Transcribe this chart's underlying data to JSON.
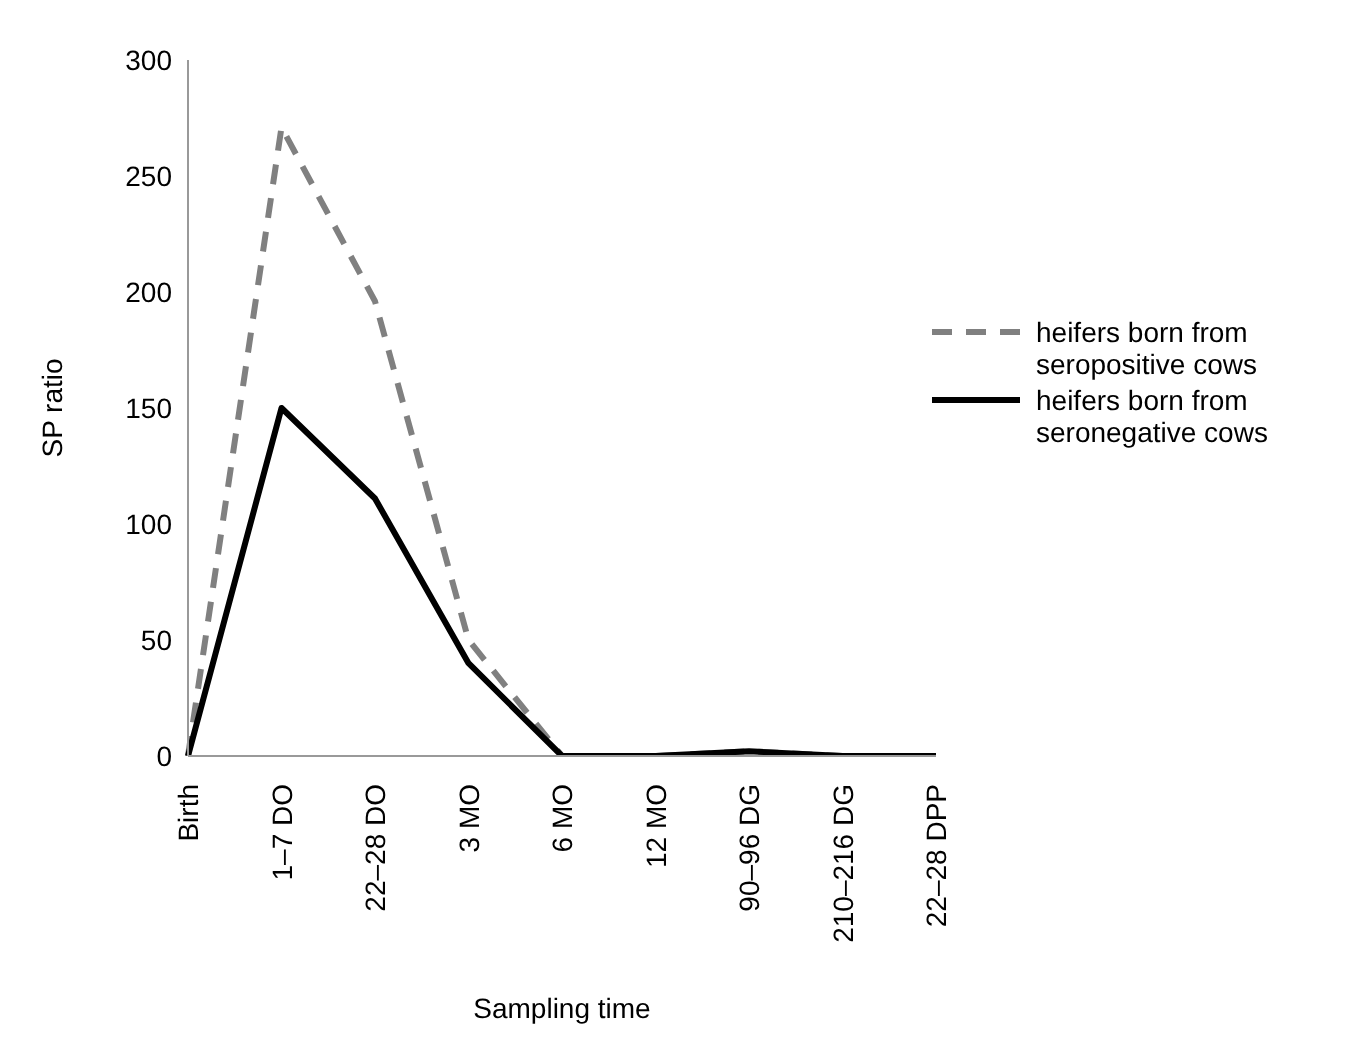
{
  "chart_data": {
    "type": "line",
    "xlabel": "Sampling time",
    "ylabel": "SP ratio",
    "categories": [
      "Birth",
      "1–7 DO",
      "22–28 DO",
      "3 MO",
      "6 MO",
      "12 MO",
      "90–96 DG",
      "210–216 DG",
      "22–28 DPP"
    ],
    "series": [
      {
        "name": "heifers born from seropositive cows",
        "color": "#808080",
        "line_style": "dashed",
        "values": [
          0,
          271,
          196,
          50,
          0,
          0,
          2,
          0,
          0
        ]
      },
      {
        "name": "heifers born from seronegative cows",
        "color": "#000000",
        "line_style": "solid",
        "values": [
          0,
          150,
          111,
          40,
          0,
          0,
          2,
          0,
          0
        ]
      }
    ],
    "ylim": [
      0,
      300
    ],
    "yticks": [
      0,
      50,
      100,
      150,
      200,
      250,
      300
    ],
    "legend": "right",
    "marker": "none"
  }
}
